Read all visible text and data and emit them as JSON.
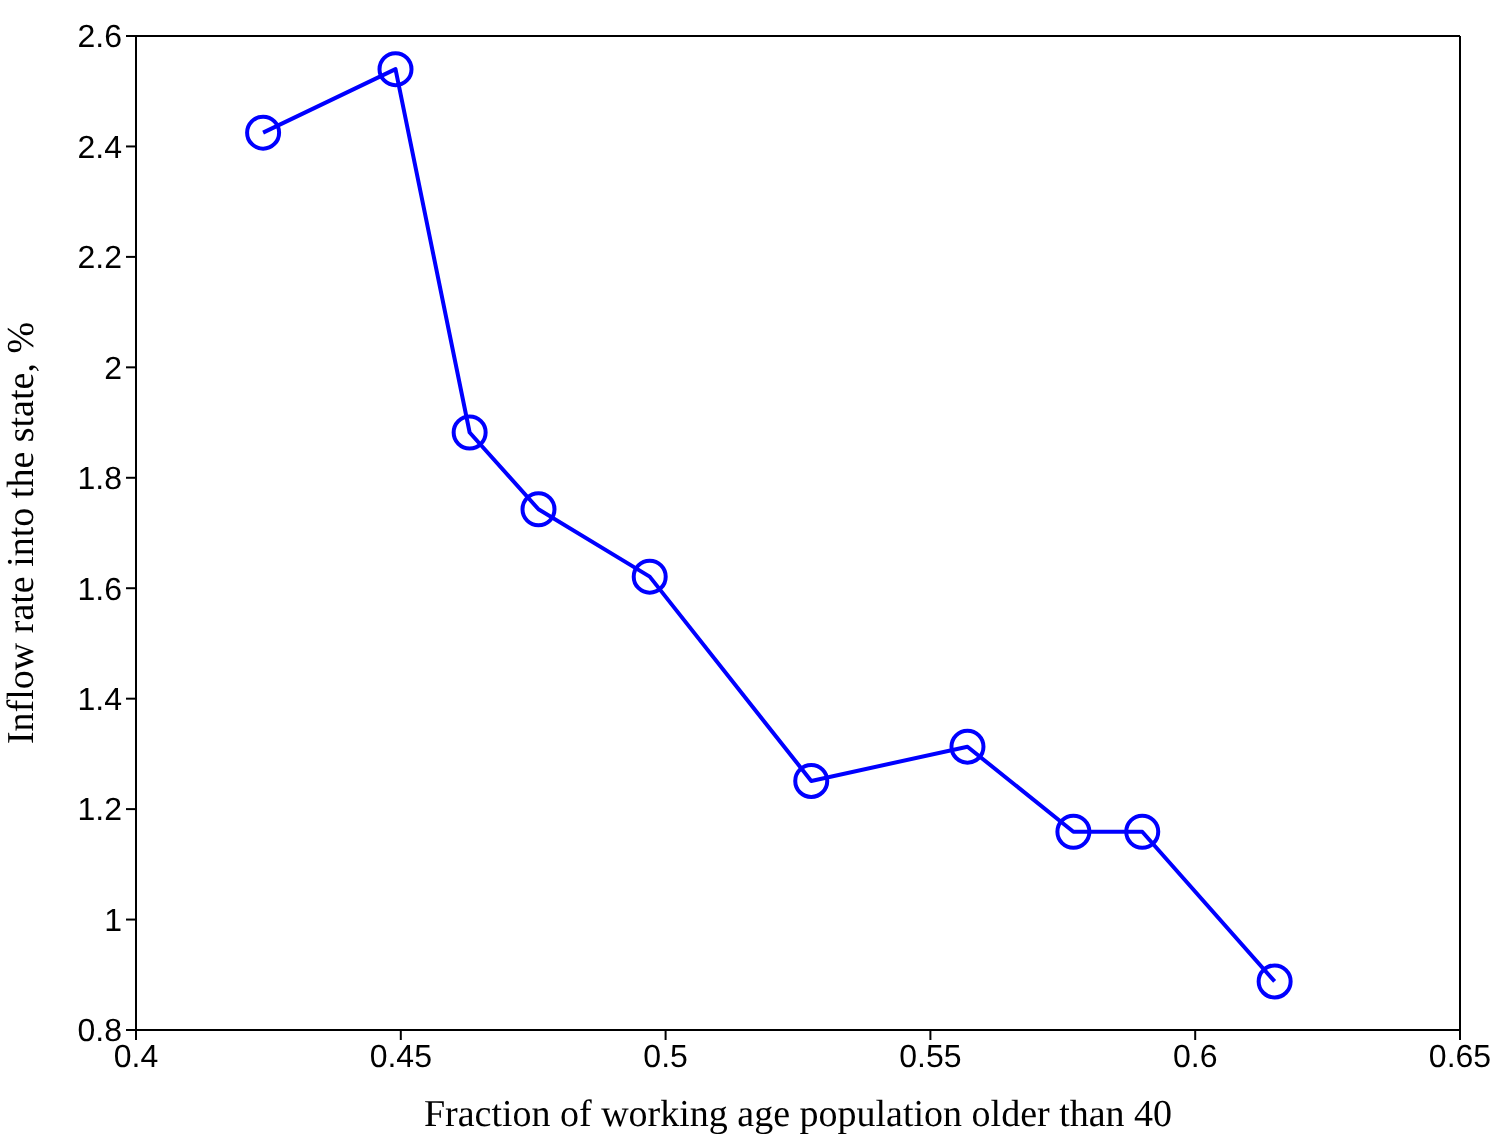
{
  "chart_data": {
    "type": "line",
    "xlabel": "Fraction of working age population older than 40",
    "ylabel": "Inflow rate into the state, %",
    "x": [
      0.424,
      0.449,
      0.463,
      0.476,
      0.497,
      0.5275,
      0.557,
      0.577,
      0.59,
      0.615
    ],
    "series": [
      {
        "color": "#0000ff",
        "values": [
          2.425,
          2.54,
          1.882,
          1.743,
          1.621,
          1.251,
          1.313,
          1.159,
          1.159,
          0.888
        ]
      }
    ],
    "xlim": [
      0.4,
      0.65
    ],
    "xticks": [
      0.4,
      0.45,
      0.5,
      0.55,
      0.6,
      0.65
    ],
    "ylim": [
      0.8,
      2.6
    ],
    "yticks": [
      0.8,
      1,
      1.2,
      1.4,
      1.6,
      1.8,
      2,
      2.2,
      2.4,
      2.6
    ],
    "marker": "circle",
    "line_style": "solid",
    "grid": false,
    "legend": false
  }
}
